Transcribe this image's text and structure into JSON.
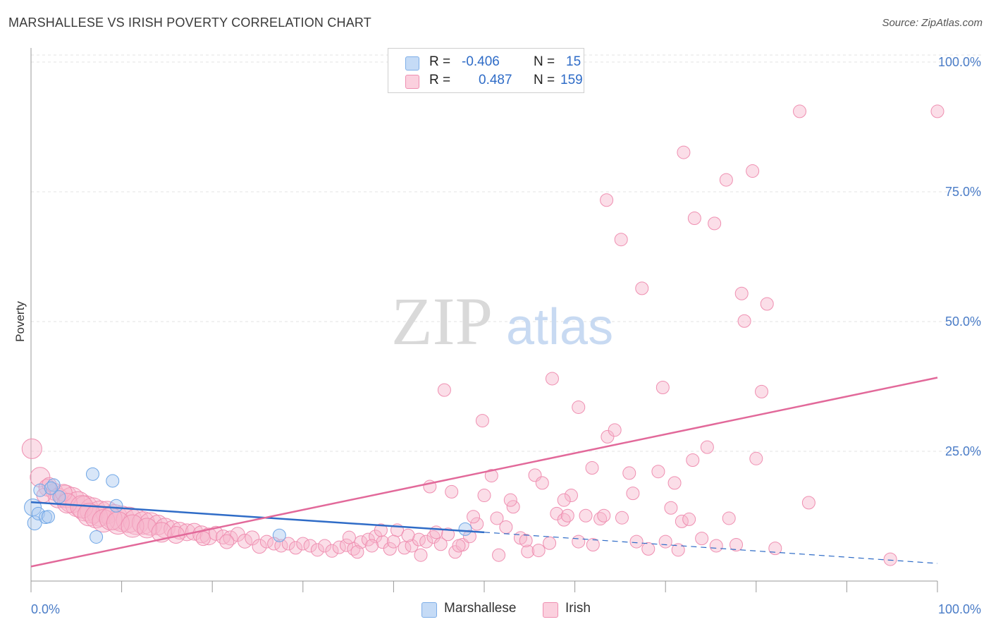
{
  "header": {
    "title": "MARSHALLESE VS IRISH POVERTY CORRELATION CHART",
    "source": "Source: ZipAtlas.com"
  },
  "legend": {
    "rows": [
      {
        "r_label": "R =",
        "r_value": "-0.406",
        "n_label": "N =",
        "n_value": "15",
        "color": "#a9c8f0"
      },
      {
        "r_label": "R =",
        "r_value": "0.487",
        "n_label": "N =",
        "n_value": "159",
        "color": "#f6b6cb"
      }
    ]
  },
  "bottom_legend": {
    "items": [
      {
        "label": "Marshallese",
        "color": "#a9c8f0"
      },
      {
        "label": "Irish",
        "color": "#f6b6cb"
      }
    ]
  },
  "watermark": {
    "zip": "ZIP",
    "atlas": "atlas"
  },
  "chart_data": {
    "type": "scatter",
    "title": "MARSHALLESE VS IRISH POVERTY CORRELATION CHART",
    "xlabel": "",
    "ylabel": "Poverty",
    "xlim": [
      0,
      100
    ],
    "ylim": [
      0,
      100
    ],
    "x_tick_labels": [
      "0.0%",
      "100.0%"
    ],
    "y_tick_labels": [
      "100.0%",
      "75.0%",
      "50.0%",
      "25.0%"
    ],
    "y_tick_values": [
      100,
      75,
      50,
      25
    ],
    "grid": true,
    "legend_position": "top-center",
    "colors": {
      "marshallese": "#6fa6e6",
      "irish": "#ef7fa5",
      "marshallese_line": "#2f6cc7",
      "irish_line": "#e2699a"
    },
    "series": [
      {
        "name": "Marshallese",
        "points": [
          [
            0.2,
            14.2,
            12
          ],
          [
            0.4,
            11.2,
            10
          ],
          [
            0.8,
            13.0,
            9
          ],
          [
            1.0,
            17.5,
            9
          ],
          [
            1.6,
            12.3,
            9
          ],
          [
            1.9,
            12.4,
            9
          ],
          [
            2.5,
            18.5,
            9
          ],
          [
            3.1,
            16.2,
            9
          ],
          [
            6.8,
            20.6,
            9
          ],
          [
            7.2,
            8.5,
            9
          ],
          [
            9.0,
            19.3,
            9
          ],
          [
            9.4,
            14.5,
            9
          ],
          [
            27.4,
            8.8,
            9
          ],
          [
            47.9,
            10.0,
            9
          ],
          [
            2.2,
            17.9,
            9
          ]
        ],
        "trend": {
          "x0": 0,
          "y0": 15.2,
          "x1": 50,
          "y1": 9.4,
          "dash_to_x": 100,
          "dash_to_y": 3.4
        }
      },
      {
        "name": "Irish",
        "points": [
          [
            0.1,
            25.5,
            14
          ],
          [
            1.0,
            20.0,
            14
          ],
          [
            1.8,
            18.0,
            12
          ],
          [
            2.6,
            17.2,
            12
          ],
          [
            3.0,
            16.0,
            14
          ],
          [
            3.8,
            16.3,
            16
          ],
          [
            4.5,
            15.6,
            18
          ],
          [
            5.2,
            14.8,
            18
          ],
          [
            6.0,
            14.0,
            18
          ],
          [
            6.8,
            13.6,
            18
          ],
          [
            7.6,
            13.0,
            18
          ],
          [
            8.4,
            13.2,
            16
          ],
          [
            9.2,
            12.3,
            18
          ],
          [
            10.0,
            12.0,
            18
          ],
          [
            10.8,
            11.8,
            18
          ],
          [
            11.6,
            11.4,
            18
          ],
          [
            12.4,
            11.2,
            16
          ],
          [
            13.2,
            11.0,
            16
          ],
          [
            14.0,
            10.8,
            14
          ],
          [
            14.8,
            10.2,
            14
          ],
          [
            15.6,
            10.0,
            12
          ],
          [
            16.4,
            9.7,
            12
          ],
          [
            17.2,
            9.4,
            12
          ],
          [
            18.0,
            9.5,
            12
          ],
          [
            18.8,
            9.0,
            12
          ],
          [
            19.6,
            8.6,
            12
          ],
          [
            20.4,
            9.2,
            10
          ],
          [
            21.2,
            8.5,
            10
          ],
          [
            22.0,
            8.3,
            10
          ],
          [
            22.8,
            9.0,
            10
          ],
          [
            23.6,
            7.7,
            10
          ],
          [
            24.4,
            8.3,
            10
          ],
          [
            25.2,
            6.7,
            10
          ],
          [
            26.0,
            7.6,
            9
          ],
          [
            26.8,
            7.2,
            9
          ],
          [
            27.6,
            6.8,
            9
          ],
          [
            28.4,
            7.2,
            9
          ],
          [
            29.2,
            6.4,
            9
          ],
          [
            30.0,
            7.2,
            9
          ],
          [
            30.8,
            6.8,
            9
          ],
          [
            31.6,
            6.0,
            9
          ],
          [
            32.4,
            6.8,
            9
          ],
          [
            33.2,
            5.8,
            9
          ],
          [
            34.0,
            6.5,
            9
          ],
          [
            34.8,
            6.9,
            9
          ],
          [
            35.6,
            6.2,
            9
          ],
          [
            36.4,
            7.5,
            9
          ],
          [
            37.2,
            8.0,
            9
          ],
          [
            38.0,
            8.6,
            9
          ],
          [
            38.8,
            7.5,
            9
          ],
          [
            39.6,
            6.2,
            9
          ],
          [
            40.4,
            9.8,
            9
          ],
          [
            41.2,
            6.4,
            9
          ],
          [
            42.0,
            6.8,
            9
          ],
          [
            42.8,
            8.0,
            9
          ],
          [
            43.6,
            7.6,
            9
          ],
          [
            44.4,
            8.5,
            9
          ],
          [
            45.2,
            7.1,
            9
          ],
          [
            46.0,
            9.0,
            9
          ],
          [
            46.8,
            5.6,
            9
          ],
          [
            47.6,
            7.0,
            9
          ],
          [
            48.4,
            8.6,
            9
          ],
          [
            49.2,
            11.0,
            9
          ],
          [
            50.0,
            16.5,
            9
          ],
          [
            50.8,
            20.3,
            9
          ],
          [
            51.6,
            5.0,
            9
          ],
          [
            52.4,
            10.4,
            9
          ],
          [
            53.2,
            14.3,
            9
          ],
          [
            54.0,
            8.3,
            9
          ],
          [
            54.8,
            5.7,
            9
          ],
          [
            55.6,
            20.4,
            9
          ],
          [
            56.4,
            18.9,
            9
          ],
          [
            57.2,
            7.3,
            9
          ],
          [
            58.0,
            13.0,
            9
          ],
          [
            58.8,
            11.8,
            9
          ],
          [
            59.6,
            16.5,
            9
          ],
          [
            60.4,
            7.6,
            9
          ],
          [
            61.2,
            12.6,
            9
          ],
          [
            62.0,
            7.0,
            9
          ],
          [
            62.8,
            12.0,
            9
          ],
          [
            63.6,
            27.8,
            9
          ],
          [
            64.4,
            29.1,
            9
          ],
          [
            65.2,
            12.2,
            9
          ],
          [
            66.0,
            20.8,
            9
          ],
          [
            66.8,
            7.6,
            9
          ],
          [
            69.2,
            21.1,
            9
          ],
          [
            70.0,
            7.6,
            9
          ],
          [
            71.4,
            6.0,
            9
          ],
          [
            71.0,
            18.9,
            9
          ],
          [
            71.8,
            11.5,
            9
          ],
          [
            73.0,
            23.3,
            9
          ],
          [
            74.6,
            25.8,
            9
          ],
          [
            75.6,
            6.8,
            9
          ],
          [
            77.0,
            12.1,
            9
          ],
          [
            80.0,
            23.6,
            9
          ],
          [
            82.1,
            6.3,
            9
          ],
          [
            85.8,
            15.1,
            9
          ],
          [
            94.8,
            4.2,
            9
          ],
          [
            44.0,
            18.2,
            9
          ],
          [
            45.6,
            36.8,
            9
          ],
          [
            49.8,
            30.9,
            9
          ],
          [
            57.5,
            39.0,
            9
          ],
          [
            60.4,
            33.5,
            9
          ],
          [
            63.5,
            73.4,
            9
          ],
          [
            65.1,
            65.8,
            9
          ],
          [
            67.4,
            56.4,
            9
          ],
          [
            69.7,
            37.3,
            9
          ],
          [
            72.0,
            82.6,
            9
          ],
          [
            73.2,
            69.9,
            9
          ],
          [
            75.4,
            68.9,
            9
          ],
          [
            76.7,
            77.3,
            9
          ],
          [
            78.4,
            55.4,
            9
          ],
          [
            78.7,
            50.1,
            9
          ],
          [
            79.6,
            79.0,
            9
          ],
          [
            81.2,
            53.4,
            9
          ],
          [
            80.6,
            36.5,
            9
          ],
          [
            84.8,
            90.5,
            9
          ],
          [
            100.0,
            90.5,
            9
          ],
          [
            35.1,
            8.4,
            9
          ],
          [
            36.0,
            5.6,
            9
          ],
          [
            37.6,
            6.8,
            9
          ],
          [
            38.6,
            9.8,
            9
          ],
          [
            40.0,
            7.6,
            9
          ],
          [
            41.6,
            8.8,
            9
          ],
          [
            43.0,
            5.0,
            9
          ],
          [
            44.7,
            9.4,
            9
          ],
          [
            46.4,
            17.2,
            9
          ],
          [
            47.2,
            6.8,
            9
          ],
          [
            48.8,
            12.4,
            9
          ],
          [
            51.4,
            12.1,
            9
          ],
          [
            52.9,
            15.6,
            9
          ],
          [
            54.6,
            7.8,
            9
          ],
          [
            56.0,
            5.9,
            9
          ],
          [
            58.8,
            15.6,
            9
          ],
          [
            59.2,
            12.6,
            9
          ],
          [
            61.9,
            21.8,
            9
          ],
          [
            63.2,
            12.6,
            9
          ],
          [
            66.4,
            16.9,
            9
          ],
          [
            68.1,
            6.2,
            9
          ],
          [
            70.6,
            14.1,
            9
          ],
          [
            72.6,
            11.9,
            9
          ],
          [
            74.0,
            8.2,
            9
          ],
          [
            77.8,
            7.0,
            9
          ],
          [
            3.6,
            17.0,
            12
          ],
          [
            2.0,
            18.6,
            10
          ],
          [
            1.4,
            16.5,
            10
          ],
          [
            4.0,
            15.0,
            14
          ],
          [
            5.6,
            14.3,
            16
          ],
          [
            6.4,
            12.8,
            16
          ],
          [
            7.2,
            12.4,
            16
          ],
          [
            8.0,
            11.6,
            16
          ],
          [
            8.8,
            12.0,
            16
          ],
          [
            9.6,
            11.2,
            16
          ],
          [
            11.2,
            10.6,
            16
          ],
          [
            12.8,
            10.2,
            14
          ],
          [
            14.4,
            9.4,
            14
          ],
          [
            16.0,
            8.9,
            12
          ],
          [
            19.0,
            8.2,
            10
          ],
          [
            21.6,
            7.6,
            10
          ]
        ],
        "trend": {
          "x0": 0,
          "y0": 2.8,
          "x1": 100,
          "y1": 39.2
        }
      }
    ]
  }
}
